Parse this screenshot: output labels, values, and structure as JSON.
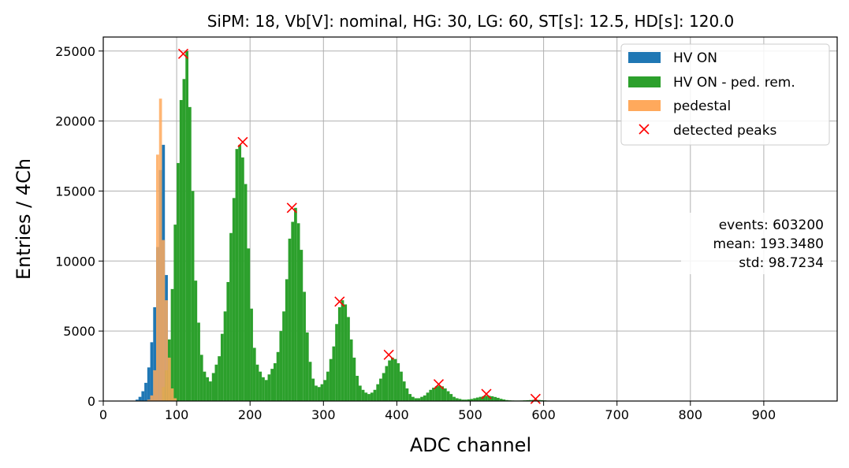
{
  "chart_data": {
    "type": "bar",
    "title": "SiPM: 18, Vb[V]: nominal, HG: 30, LG: 60, ST[s]: 12.5, HD[s]: 120.0",
    "xlabel": "ADC channel",
    "ylabel": "Entries / 4Ch",
    "xlim": [
      0,
      1000
    ],
    "ylim": [
      0,
      26000
    ],
    "xticks": [
      0,
      100,
      200,
      300,
      400,
      500,
      600,
      700,
      800,
      900
    ],
    "yticks": [
      0,
      5000,
      10000,
      15000,
      20000,
      25000
    ],
    "grid": true,
    "legend_placement": "top-right",
    "bin_width": 4,
    "series": [
      {
        "name": "HV ON",
        "color": "#1f77b4",
        "x": [
          44,
          48,
          52,
          56,
          60,
          64,
          68,
          72,
          76,
          80,
          84
        ],
        "values": [
          100,
          300,
          700,
          1300,
          2400,
          4200,
          6700,
          11000,
          16500,
          18300,
          9000
        ]
      },
      {
        "name": "HV ON - ped. rem.",
        "color": "#2ca02c",
        "x": [
          80,
          84,
          88,
          92,
          96,
          100,
          104,
          108,
          112,
          116,
          120,
          124,
          128,
          132,
          136,
          140,
          144,
          148,
          152,
          156,
          160,
          164,
          168,
          172,
          176,
          180,
          184,
          188,
          192,
          196,
          200,
          204,
          208,
          212,
          216,
          220,
          224,
          228,
          232,
          236,
          240,
          244,
          248,
          252,
          256,
          260,
          264,
          268,
          272,
          276,
          280,
          284,
          288,
          292,
          296,
          300,
          304,
          308,
          312,
          316,
          320,
          324,
          328,
          332,
          336,
          340,
          344,
          348,
          352,
          356,
          360,
          364,
          368,
          372,
          376,
          380,
          384,
          388,
          392,
          396,
          400,
          404,
          408,
          412,
          416,
          420,
          424,
          428,
          432,
          436,
          440,
          444,
          448,
          452,
          456,
          460,
          464,
          468,
          472,
          476,
          480,
          484,
          488,
          492,
          496,
          500,
          504,
          508,
          512,
          516,
          520,
          524,
          528,
          532,
          536,
          540,
          544,
          548,
          552,
          556,
          560,
          564,
          568,
          572,
          576,
          580,
          584,
          588,
          592,
          596,
          600,
          604
        ],
        "values": [
          1000,
          2200,
          4400,
          8000,
          12600,
          17000,
          21500,
          23000,
          25000,
          21000,
          15000,
          8600,
          5600,
          3300,
          2100,
          1700,
          1400,
          2000,
          2600,
          3200,
          4800,
          6400,
          8500,
          12000,
          14500,
          18000,
          18300,
          17400,
          15500,
          10900,
          6600,
          3800,
          2600,
          2100,
          1700,
          1500,
          1900,
          2300,
          2700,
          3500,
          5000,
          6400,
          8700,
          11600,
          12800,
          13800,
          12700,
          10800,
          7800,
          4900,
          2800,
          1600,
          1100,
          1000,
          1200,
          1500,
          2100,
          3000,
          3900,
          5500,
          6700,
          7200,
          6900,
          6000,
          4400,
          3100,
          1800,
          1100,
          800,
          600,
          500,
          600,
          800,
          1200,
          1600,
          2000,
          2500,
          2900,
          3100,
          3000,
          2700,
          2100,
          1400,
          900,
          500,
          300,
          200,
          200,
          300,
          400,
          600,
          800,
          950,
          1050,
          1100,
          1050,
          900,
          700,
          500,
          300,
          200,
          150,
          100,
          100,
          120,
          150,
          200,
          250,
          300,
          350,
          380,
          370,
          340,
          290,
          230,
          160,
          110,
          70,
          50,
          40,
          35,
          35,
          40,
          50,
          60,
          70,
          80,
          80,
          75,
          60,
          45,
          30
        ]
      },
      {
        "name": "pedestal",
        "color": "#ffa95c",
        "x": [
          60,
          64,
          68,
          72,
          76,
          80,
          84,
          88,
          92,
          96
        ],
        "values": [
          100,
          400,
          2200,
          17600,
          21600,
          11500,
          7200,
          3100,
          900,
          200
        ]
      },
      {
        "name": "detected peaks",
        "color": "#ff0000",
        "marker": "x",
        "x": [
          109,
          190,
          257,
          322,
          389,
          457,
          522,
          589
        ],
        "values": [
          24800,
          18500,
          13800,
          7100,
          3300,
          1200,
          500,
          150
        ]
      }
    ],
    "annotations": [
      "events: 603200",
      "mean: 193.3480",
      "std: 98.7234"
    ]
  }
}
